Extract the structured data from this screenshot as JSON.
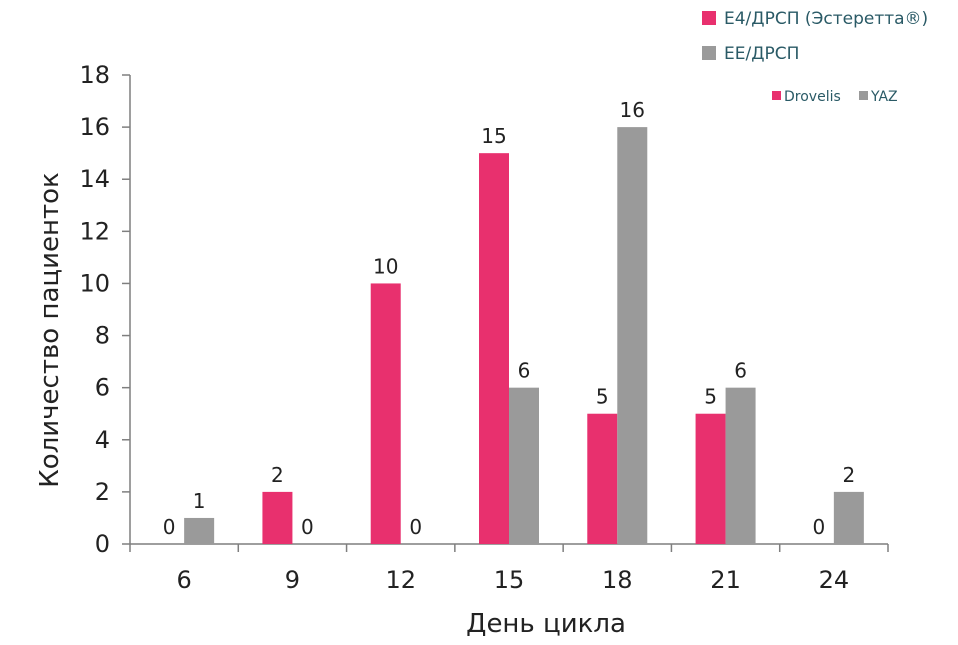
{
  "chart_data": {
    "type": "bar",
    "categories": [
      "6",
      "9",
      "12",
      "15",
      "18",
      "21",
      "24"
    ],
    "series": [
      {
        "name": "E4/ДРСП (Эстеретта®)",
        "short_name": "Drovelis",
        "color": "#e8306e",
        "values": [
          0,
          2,
          10,
          15,
          5,
          5,
          0
        ]
      },
      {
        "name": "ЕЕ/ДРСП",
        "short_name": "YAZ",
        "color": "#9a9a9a",
        "values": [
          1,
          0,
          0,
          6,
          16,
          6,
          2
        ]
      }
    ],
    "xlabel": "День цикла",
    "ylabel": "Количество пациенток",
    "ylim": [
      0,
      18
    ],
    "yticks": [
      0,
      2,
      4,
      6,
      8,
      10,
      12,
      14,
      16,
      18
    ],
    "grid": false,
    "legend_position": "top-right",
    "secondary_legend_position": "top-right"
  }
}
